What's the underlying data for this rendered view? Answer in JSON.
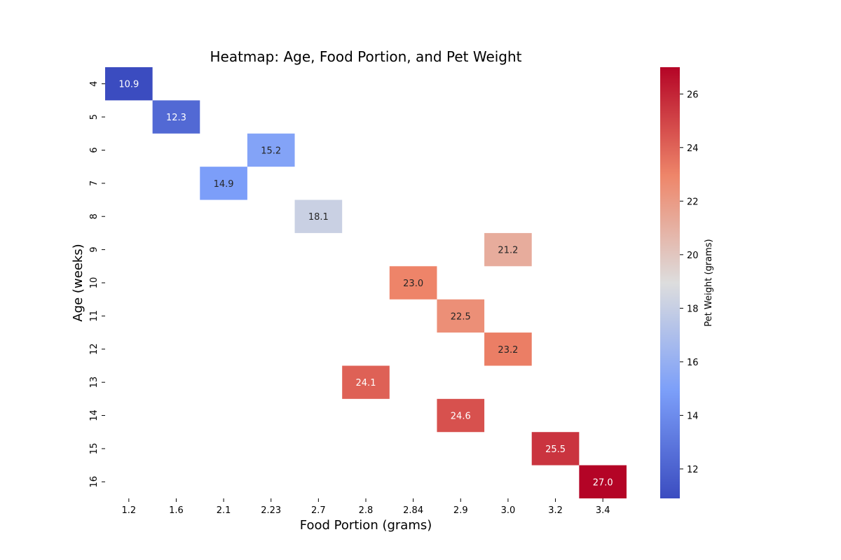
{
  "chart_data": {
    "type": "heatmap",
    "title": "Heatmap: Age, Food Portion, and Pet Weight",
    "xlabel": "Food Portion (grams)",
    "ylabel": "Age (weeks)",
    "x_categories": [
      "1.2",
      "1.6",
      "2.1",
      "2.23",
      "2.7",
      "2.8",
      "2.84",
      "2.9",
      "3.0",
      "3.2",
      "3.4"
    ],
    "y_categories": [
      "4",
      "5",
      "6",
      "7",
      "8",
      "9",
      "10",
      "11",
      "12",
      "13",
      "14",
      "15",
      "16"
    ],
    "cells": [
      {
        "x": "1.2",
        "y": "4",
        "value": 10.9,
        "label": "10.9"
      },
      {
        "x": "1.6",
        "y": "5",
        "value": 12.3,
        "label": "12.3"
      },
      {
        "x": "2.23",
        "y": "6",
        "value": 15.2,
        "label": "15.2"
      },
      {
        "x": "2.1",
        "y": "7",
        "value": 14.9,
        "label": "14.9"
      },
      {
        "x": "2.7",
        "y": "8",
        "value": 18.1,
        "label": "18.1"
      },
      {
        "x": "3.0",
        "y": "9",
        "value": 21.2,
        "label": "21.2"
      },
      {
        "x": "2.84",
        "y": "10",
        "value": 23.0,
        "label": "23.0"
      },
      {
        "x": "2.9",
        "y": "11",
        "value": 22.5,
        "label": "22.5"
      },
      {
        "x": "3.0",
        "y": "12",
        "value": 23.2,
        "label": "23.2"
      },
      {
        "x": "2.8",
        "y": "13",
        "value": 24.1,
        "label": "24.1"
      },
      {
        "x": "2.9",
        "y": "14",
        "value": 24.6,
        "label": "24.6"
      },
      {
        "x": "3.2",
        "y": "15",
        "value": 25.5,
        "label": "25.5"
      },
      {
        "x": "3.4",
        "y": "16",
        "value": 27.0,
        "label": "27.0"
      }
    ],
    "colorbar": {
      "label": "Pet Weight (grams)",
      "colormap": "coolwarm",
      "range": [
        10.9,
        27.0
      ],
      "ticks": [
        12,
        14,
        16,
        18,
        20,
        22,
        24,
        26
      ]
    },
    "grid": false
  }
}
